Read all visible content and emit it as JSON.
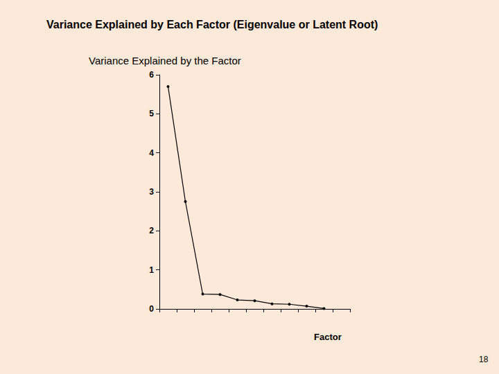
{
  "chart_data": {
    "type": "line",
    "title": "Variance Explained by Each Factor (Eigenvalue or Latent Root)",
    "subtitle": "Variance Explained by the Factor",
    "xlabel": "Factor",
    "page_number": "18",
    "categories": [
      null,
      null,
      null,
      null,
      null,
      null,
      null,
      null,
      null,
      null,
      null
    ],
    "values": [
      5.7,
      2.75,
      0.38,
      0.37,
      0.23,
      0.21,
      0.13,
      0.12,
      0.07,
      0.01,
      null
    ],
    "color": "#000000",
    "marker": "circle",
    "ylim": [
      0,
      6
    ],
    "yticks": [
      0,
      1,
      2,
      3,
      4,
      5,
      6
    ],
    "grid": false,
    "tick_labels": "y"
  }
}
